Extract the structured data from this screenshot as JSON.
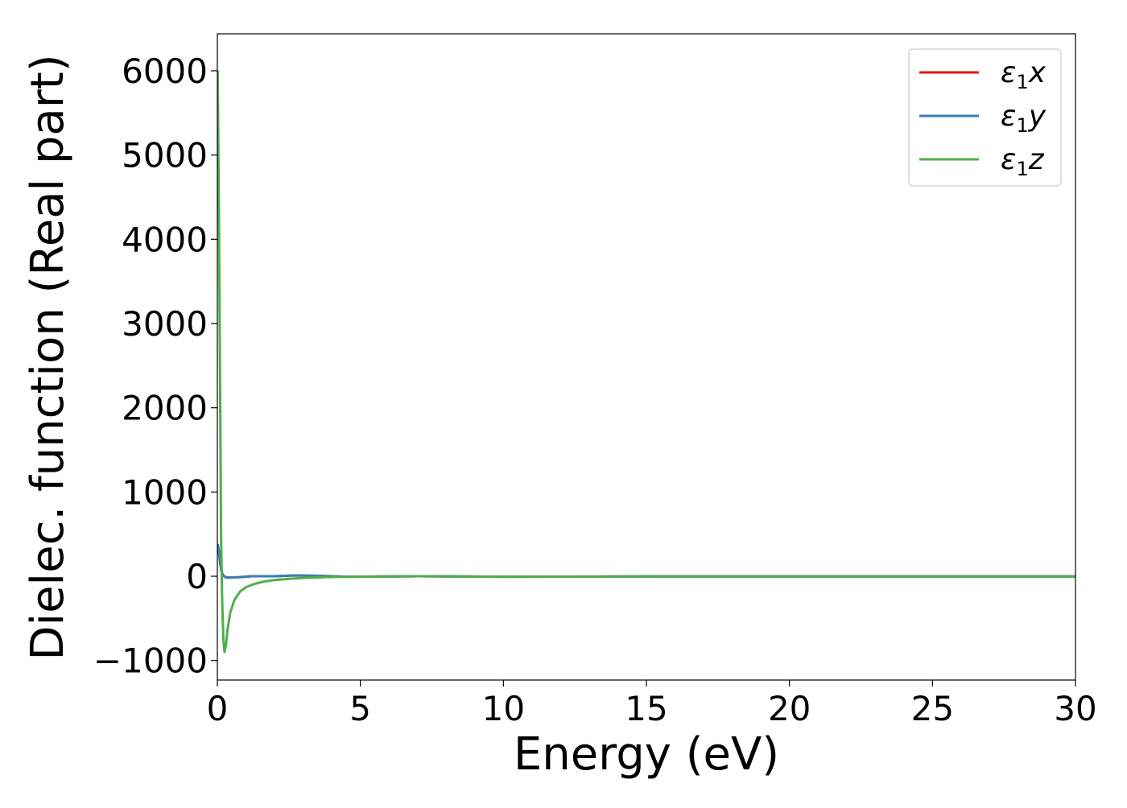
{
  "chart_data": {
    "type": "line",
    "title": "",
    "xlabel": "Energy (eV)",
    "ylabel": "Dielec. function (Real part)",
    "xlim": [
      0,
      30
    ],
    "ylim": [
      -1232,
      6439
    ],
    "xticks": [
      0,
      5,
      10,
      15,
      20,
      25,
      30
    ],
    "yticks": [
      -1000,
      0,
      1000,
      2000,
      3000,
      4000,
      5000,
      6000
    ],
    "xtick_labels": [
      "0",
      "5",
      "10",
      "15",
      "20",
      "25",
      "30"
    ],
    "ytick_labels": [
      "−1000",
      "0",
      "1000",
      "2000",
      "3000",
      "4000",
      "5000",
      "6000"
    ],
    "grid": false,
    "legend_position": "top-right",
    "series": [
      {
        "name": "ε₁x",
        "name_base": "ε",
        "name_sub": "1",
        "name_var": "x",
        "color": "#e41a1c",
        "x": [
          0.01,
          0.05,
          0.1,
          0.15,
          0.2,
          0.3,
          0.5,
          0.8,
          1.2,
          2,
          2.7,
          3.5,
          4.5,
          7,
          10,
          15,
          20,
          25,
          30
        ],
        "y": [
          380,
          300,
          150,
          50,
          10,
          -15,
          -15,
          -10,
          0,
          0,
          10,
          5,
          -5,
          0,
          -5,
          -3,
          -2,
          -2,
          -2
        ]
      },
      {
        "name": "ε₁y",
        "name_base": "ε",
        "name_sub": "1",
        "name_var": "y",
        "color": "#377eb8",
        "x": [
          0.01,
          0.05,
          0.1,
          0.15,
          0.2,
          0.3,
          0.5,
          0.8,
          1.2,
          2,
          2.7,
          3.5,
          4.5,
          7,
          10,
          15,
          20,
          25,
          30
        ],
        "y": [
          380,
          300,
          150,
          50,
          10,
          -15,
          -15,
          -10,
          0,
          0,
          10,
          5,
          -5,
          0,
          -5,
          -3,
          -2,
          -2,
          -2
        ]
      },
      {
        "name": "ε₁z",
        "name_base": "ε",
        "name_sub": "1",
        "name_var": "z",
        "color": "#4daf4a",
        "x": [
          0.01,
          0.05,
          0.1,
          0.13,
          0.17,
          0.21,
          0.25,
          0.3,
          0.35,
          0.45,
          0.6,
          0.8,
          1.0,
          1.3,
          1.6,
          2.0,
          2.5,
          3.0,
          4.0,
          5,
          7,
          10,
          15,
          20,
          25,
          30
        ],
        "y": [
          6000,
          4500,
          2000,
          500,
          -300,
          -750,
          -900,
          -820,
          -650,
          -430,
          -280,
          -180,
          -130,
          -90,
          -65,
          -45,
          -30,
          -20,
          -8,
          -5,
          0,
          -5,
          -3,
          -2,
          -2,
          -2
        ]
      }
    ]
  }
}
